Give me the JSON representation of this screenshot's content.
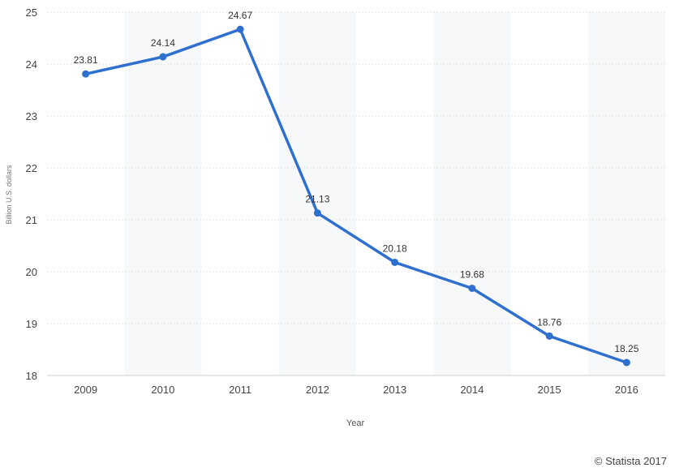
{
  "chart_data": {
    "type": "line",
    "title": "",
    "xlabel": "Year",
    "ylabel": "Billion U.S. dollars",
    "categories": [
      "2009",
      "2010",
      "2011",
      "2012",
      "2013",
      "2014",
      "2015",
      "2016"
    ],
    "series": [
      {
        "values": [
          23.81,
          24.14,
          24.67,
          21.13,
          20.18,
          19.68,
          18.76,
          18.25
        ],
        "labels": [
          "23.81",
          "24.14",
          "24.67",
          "21.13",
          "20.18",
          "19.68",
          "18.76",
          "18.25"
        ],
        "color": "#2f6fce"
      }
    ],
    "ylim": [
      18,
      25
    ],
    "yticks": [
      "18",
      "19",
      "20",
      "21",
      "22",
      "23",
      "24",
      "25"
    ],
    "grid": true,
    "legend": "none"
  },
  "credit": "© Statista 2017"
}
